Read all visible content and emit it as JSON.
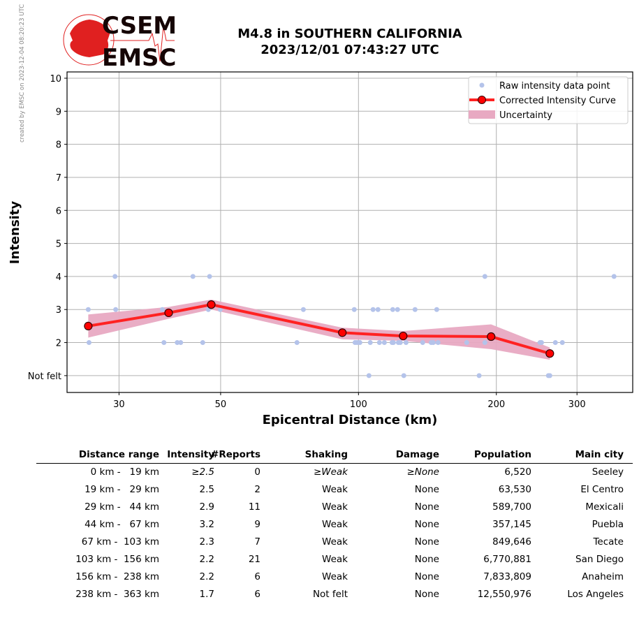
{
  "header": {
    "credit": "created by EMSC on 2023-12-04 08:20:23 UTC",
    "logo_top": "CSEM",
    "logo_bottom": "EMSC",
    "title_line1": "M4.8 in SOUTHERN CALIFORNIA",
    "title_line2": "2023/12/01 07:43:27 UTC"
  },
  "colors": {
    "raw": "#b4c3ea",
    "curve": "#ff2222",
    "marker": "#ff0000",
    "band": "#e8a9c2",
    "logo_red": "#e02020"
  },
  "chart_data": {
    "type": "scatter",
    "xlabel": "Epicentral Distance (km)",
    "ylabel": "Intensity",
    "xscale": "log",
    "xlim": [
      23.1,
      397
    ],
    "ylim": [
      0.49,
      10.19
    ],
    "xticks": [
      30,
      50,
      100,
      200,
      300
    ],
    "xtick_labels": [
      "30",
      "50",
      "100",
      "200",
      "300"
    ],
    "yticks": [
      1,
      2,
      3,
      4,
      5,
      6,
      7,
      8,
      9,
      10
    ],
    "ytick_labels": [
      "Not felt",
      "2",
      "3",
      "4",
      "5",
      "6",
      "7",
      "8",
      "9",
      "10"
    ],
    "grid": true,
    "legend": {
      "placement": "top-right",
      "entries": [
        "Raw intensity data point",
        "Corrected Intensity Curve",
        "Uncertainty"
      ]
    },
    "raw_points": [
      [
        29.4,
        4
      ],
      [
        43.5,
        4
      ],
      [
        47.3,
        4
      ],
      [
        188.8,
        4
      ],
      [
        361.4,
        4
      ],
      [
        25.7,
        3
      ],
      [
        29.5,
        3
      ],
      [
        37.3,
        3
      ],
      [
        47.0,
        3
      ],
      [
        49.9,
        3
      ],
      [
        75.8,
        3
      ],
      [
        97.9,
        3
      ],
      [
        107.6,
        3
      ],
      [
        110.3,
        3
      ],
      [
        118.8,
        3
      ],
      [
        121.7,
        3
      ],
      [
        132.9,
        3
      ],
      [
        148.2,
        3
      ],
      [
        25.8,
        2
      ],
      [
        37.6,
        2
      ],
      [
        40.2,
        2
      ],
      [
        40.9,
        2
      ],
      [
        45.7,
        2
      ],
      [
        73.4,
        2
      ],
      [
        98.3,
        2
      ],
      [
        99.3,
        2
      ],
      [
        100.7,
        2
      ],
      [
        106.1,
        2
      ],
      [
        111.1,
        2
      ],
      [
        113.9,
        2
      ],
      [
        118.4,
        2
      ],
      [
        119.2,
        2
      ],
      [
        122.2,
        2
      ],
      [
        123.4,
        2
      ],
      [
        127.0,
        2
      ],
      [
        138.1,
        2
      ],
      [
        144.1,
        2
      ],
      [
        145.6,
        2
      ],
      [
        149.2,
        2
      ],
      [
        172.3,
        2
      ],
      [
        188.8,
        2
      ],
      [
        249.1,
        2
      ],
      [
        251.0,
        2
      ],
      [
        269.1,
        2
      ],
      [
        278.7,
        2
      ],
      [
        105.4,
        1
      ],
      [
        125.6,
        1
      ],
      [
        183.4,
        1
      ],
      [
        259.8,
        1
      ],
      [
        261.7,
        1
      ]
    ],
    "curve": {
      "x": [
        25.7,
        38.5,
        47.7,
        92.2,
        125.2,
        194.8,
        261.7
      ],
      "y": [
        2.5,
        2.9,
        3.15,
        2.3,
        2.2,
        2.18,
        1.67
      ]
    },
    "uncertainty": {
      "upper": [
        2.85,
        3.08,
        3.3,
        2.45,
        2.35,
        2.55,
        1.85
      ],
      "lower": [
        2.15,
        2.72,
        3.0,
        2.1,
        2.05,
        1.8,
        1.48
      ]
    }
  },
  "table": {
    "headers": [
      "Distance range",
      "Intensity",
      "#Reports",
      "Shaking",
      "Damage",
      "Population",
      "Main city"
    ],
    "rows": [
      [
        "0 km -   19 km",
        "≥2.5",
        "0",
        "≥Weak",
        "≥None",
        "6,520",
        "Seeley"
      ],
      [
        "19 km -   29 km",
        "2.5",
        "2",
        "Weak",
        "None",
        "63,530",
        "El Centro"
      ],
      [
        "29 km -   44 km",
        "2.9",
        "11",
        "Weak",
        "None",
        "589,700",
        "Mexicali"
      ],
      [
        "44 km -   67 km",
        "3.2",
        "9",
        "Weak",
        "None",
        "357,145",
        "Puebla"
      ],
      [
        "67 km -  103 km",
        "2.3",
        "7",
        "Weak",
        "None",
        "849,646",
        "Tecate"
      ],
      [
        "103 km -  156 km",
        "2.2",
        "21",
        "Weak",
        "None",
        "6,770,881",
        "San Diego"
      ],
      [
        "156 km -  238 km",
        "2.2",
        "6",
        "Weak",
        "None",
        "7,833,809",
        "Anaheim"
      ],
      [
        "238 km -  363 km",
        "1.7",
        "6",
        "Not felt",
        "None",
        "12,550,976",
        "Los Angeles"
      ]
    ]
  }
}
